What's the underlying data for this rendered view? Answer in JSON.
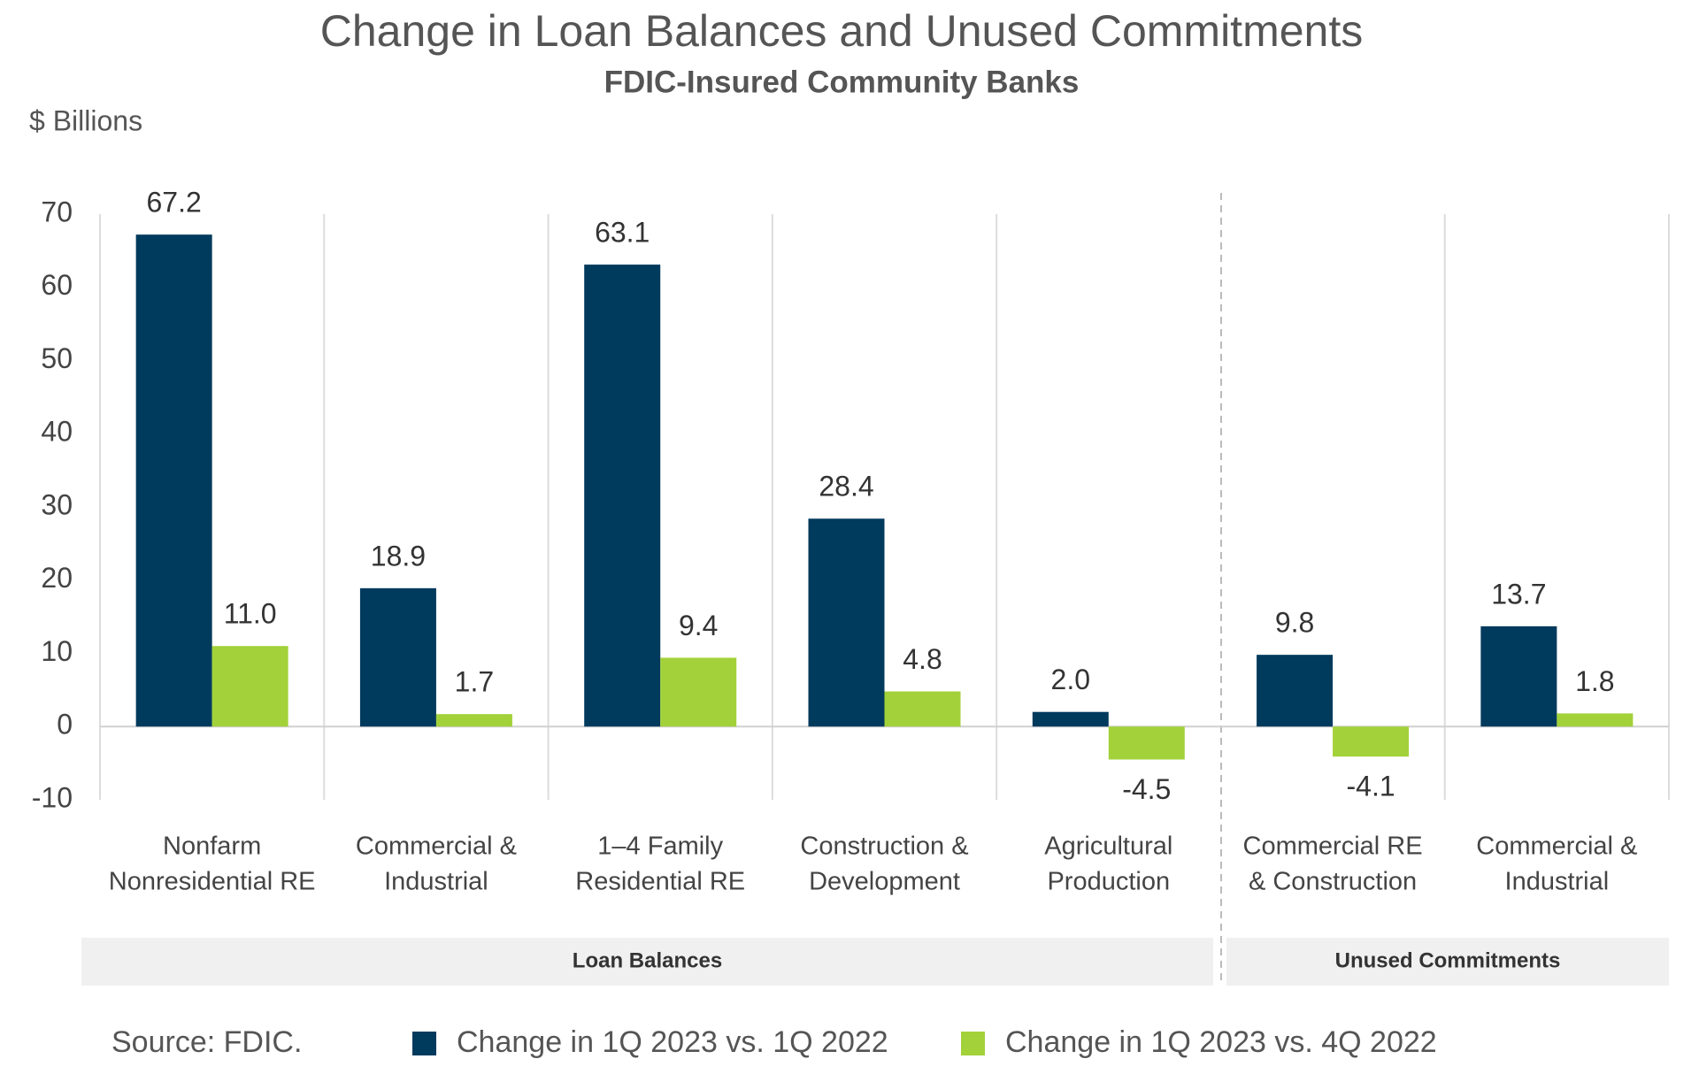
{
  "chart_data": {
    "type": "bar",
    "title": "Change in Loan Balances and Unused Commitments",
    "subtitle": "FDIC-Insured Community Banks",
    "y_axis_label": "$ Billions",
    "source": "Source: FDIC.",
    "groups": [
      {
        "label": "Loan Balances",
        "categories": [
          [
            "Nonfarm",
            "Nonresidential RE"
          ],
          [
            "Commercial &",
            "Industrial"
          ],
          [
            "1–4 Family",
            "Residential RE"
          ],
          [
            "Construction &",
            "Development"
          ],
          [
            "Agricultural",
            "Production"
          ]
        ]
      },
      {
        "label": "Unused Commitments",
        "categories": [
          [
            "Commercial RE",
            "& Construction"
          ],
          [
            "Commercial &",
            "Industrial"
          ]
        ]
      }
    ],
    "series": [
      {
        "name": "Change in 1Q 2023 vs. 1Q 2022",
        "color": "#003a5d",
        "values": [
          67.2,
          18.9,
          63.1,
          28.4,
          2,
          9.8,
          13.7
        ],
        "value_labels": [
          "67.2",
          "18.9",
          "63.1",
          "28.4",
          "2.0",
          "9.8",
          "13.7"
        ]
      },
      {
        "name": "Change in 1Q 2023 vs. 4Q 2022",
        "color": "#a2d139",
        "values": [
          11,
          1.7,
          9.4,
          4.8,
          -4.5,
          -4.1,
          1.8
        ],
        "value_labels": [
          "11.0",
          "1.7",
          "9.4",
          "4.8",
          "-4.5",
          "-4.1",
          "1.8"
        ]
      }
    ],
    "ylim": [
      -10,
      70
    ],
    "yticks": [
      -10,
      0,
      10,
      20,
      30,
      40,
      50,
      60,
      70
    ],
    "grid": false
  }
}
